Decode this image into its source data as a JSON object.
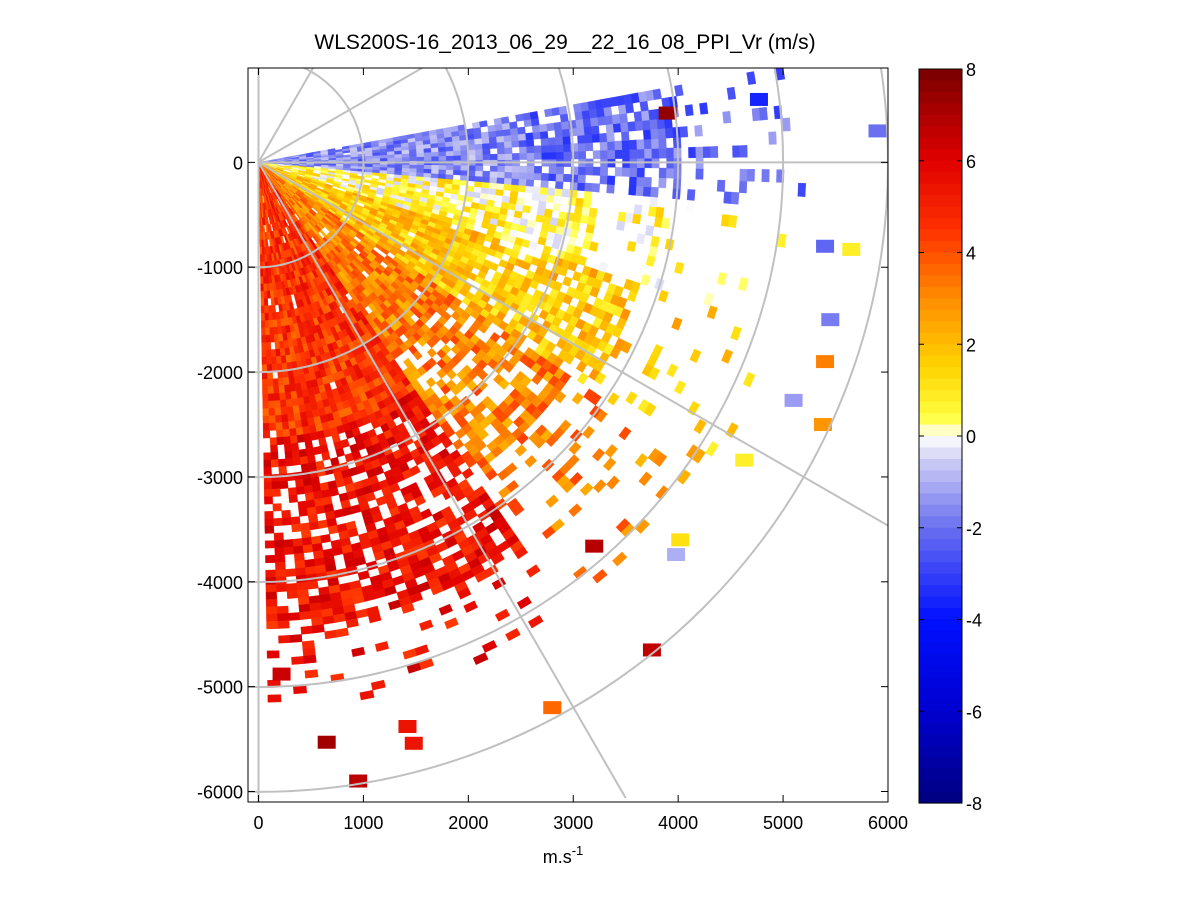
{
  "chart_data": {
    "type": "heatmap",
    "subtype": "ppi-polar-sector",
    "title": "WLS200S-16_2013_06_29__22_16_08_PPI_Vr (m/s)",
    "xlabel_base": "m.s",
    "xlabel_exponent": "-1",
    "ylabel": "",
    "xlim": [
      -100,
      6000
    ],
    "ylim": [
      -6100,
      900
    ],
    "xticks": [
      0,
      1000,
      2000,
      3000,
      4000,
      5000,
      6000
    ],
    "yticks": [
      0,
      -1000,
      -2000,
      -3000,
      -4000,
      -5000,
      -6000
    ],
    "xtick_labels": [
      "0",
      "1000",
      "2000",
      "3000",
      "4000",
      "5000",
      "6000"
    ],
    "ytick_labels": [
      "0",
      "-1000",
      "-2000",
      "-3000",
      "-4000",
      "-5000",
      "-6000"
    ],
    "sector_azimuth_deg": [
      -89,
      10
    ],
    "range_rings_m": [
      1000,
      2000,
      3000,
      4000,
      5000,
      6000
    ],
    "radial_spokes_deg": [
      60,
      30,
      0,
      -30,
      -60
    ],
    "colorbar": {
      "cmin": -8,
      "cmax": 8,
      "ticks": [
        8,
        6,
        4,
        2,
        0,
        -2,
        -4,
        -6,
        -8
      ],
      "tick_labels": [
        "8",
        "6",
        "4",
        "2",
        "0",
        "-2",
        "-4",
        "-6",
        "-8"
      ],
      "colormap": "blue-white-yellow-red",
      "stops": [
        {
          "v": -8,
          "color": "#000080"
        },
        {
          "v": -6,
          "color": "#0000d0"
        },
        {
          "v": -4,
          "color": "#0010ff"
        },
        {
          "v": -2,
          "color": "#6a70f0"
        },
        {
          "v": -0.6,
          "color": "#c8c8f4"
        },
        {
          "v": 0,
          "color": "#ffffff"
        },
        {
          "v": 0.4,
          "color": "#ffff40"
        },
        {
          "v": 1.5,
          "color": "#ffd400"
        },
        {
          "v": 3,
          "color": "#ff8c00"
        },
        {
          "v": 4.5,
          "color": "#ff3000"
        },
        {
          "v": 6,
          "color": "#e00000"
        },
        {
          "v": 8,
          "color": "#780000"
        }
      ]
    },
    "data_description_regions": [
      {
        "azimuth_deg": [
          -89,
          -55
        ],
        "range_m": [
          0,
          4400
        ],
        "vr_mean": 4.6
      },
      {
        "azimuth_deg": [
          -55,
          -35
        ],
        "range_m": [
          0,
          3600
        ],
        "vr_mean": 3.2
      },
      {
        "azimuth_deg": [
          -35,
          -18
        ],
        "range_m": [
          0,
          3800
        ],
        "vr_mean": 1.8
      },
      {
        "azimuth_deg": [
          -18,
          -5
        ],
        "range_m": [
          0,
          3200
        ],
        "vr_mean": 0.6
      },
      {
        "azimuth_deg": [
          -5,
          10
        ],
        "range_m": [
          0,
          4000
        ],
        "vr_mean": -1.6
      }
    ],
    "sparse_points": [
      {
        "x": 3900,
        "y": 470,
        "vr": 7.5
      },
      {
        "x": 3200,
        "y": -3660,
        "vr": 6.8
      },
      {
        "x": 3750,
        "y": -4650,
        "vr": 6.6
      },
      {
        "x": 650,
        "y": -5530,
        "vr": 7.2
      },
      {
        "x": 950,
        "y": -5900,
        "vr": 6.7
      },
      {
        "x": 220,
        "y": -4880,
        "vr": 6.4
      },
      {
        "x": 1420,
        "y": -5380,
        "vr": 5.4
      },
      {
        "x": 1480,
        "y": -5540,
        "vr": 5.4
      },
      {
        "x": 4770,
        "y": 600,
        "vr": -3.6
      },
      {
        "x": 5900,
        "y": 300,
        "vr": -2.0
      },
      {
        "x": 5400,
        "y": -1900,
        "vr": 3.2
      },
      {
        "x": 5380,
        "y": -2500,
        "vr": 2.8
      },
      {
        "x": 4630,
        "y": -2840,
        "vr": 0.8
      },
      {
        "x": 4020,
        "y": -3600,
        "vr": 1.2
      },
      {
        "x": 3980,
        "y": -3740,
        "vr": -1.0
      },
      {
        "x": 5100,
        "y": -2270,
        "vr": -1.3
      },
      {
        "x": 5450,
        "y": -1500,
        "vr": -1.8
      },
      {
        "x": 5400,
        "y": -800,
        "vr": -2.2
      },
      {
        "x": 5650,
        "y": -830,
        "vr": 0.8
      },
      {
        "x": 2800,
        "y": -5200,
        "vr": 3.6
      }
    ]
  }
}
